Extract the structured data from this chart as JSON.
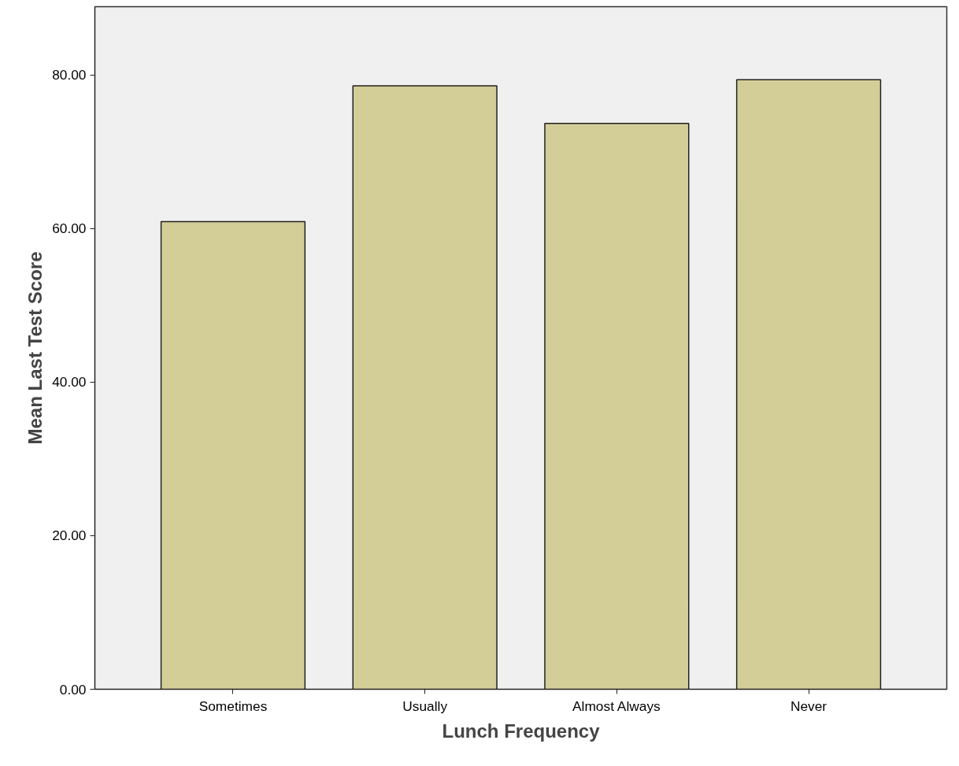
{
  "chart_data": {
    "type": "bar",
    "xlabel": "Lunch Frequency",
    "ylabel": "Mean Last Test Score",
    "categories": [
      "Sometimes",
      "Usually",
      "Almost Always",
      "Never"
    ],
    "values": [
      60.9,
      78.6,
      73.7,
      79.4
    ],
    "color": "#d3ce97",
    "ylim": [
      0,
      88.9
    ],
    "yticks": [
      {
        "value": 0,
        "label": "0.00"
      },
      {
        "value": 20,
        "label": "20.00"
      },
      {
        "value": 40,
        "label": "40.00"
      },
      {
        "value": 60,
        "label": "60.00"
      },
      {
        "value": 80,
        "label": "80.00"
      }
    ],
    "grid": false
  }
}
